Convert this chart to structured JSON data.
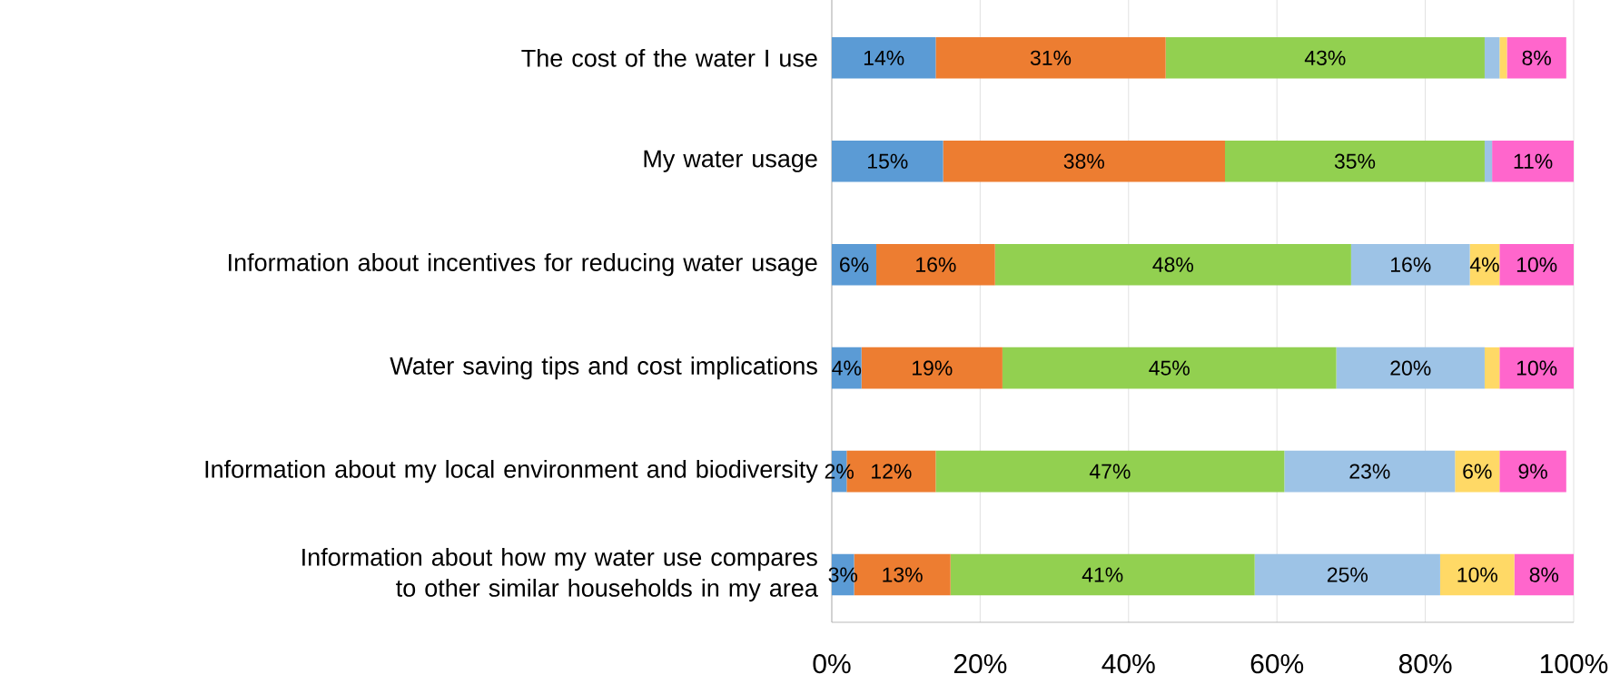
{
  "chart_data": {
    "type": "bar",
    "orientation": "horizontal",
    "stacked": true,
    "categories": [
      "The cost of the water I use",
      "My water usage",
      "Information about incentives for reducing water usage",
      "Water saving tips and cost implications",
      "Information about my local environment and biodiversity",
      "Information about how my water use compares to other similar households in my area"
    ],
    "series": [
      {
        "color": "#5b9bd5",
        "values": [
          14,
          15,
          6,
          4,
          2,
          3
        ],
        "value_labels": [
          "14%",
          "15%",
          "6%",
          "4%",
          "2%",
          "3%"
        ]
      },
      {
        "color": "#ed7d31",
        "values": [
          31,
          38,
          16,
          19,
          12,
          13
        ],
        "value_labels": [
          "31%",
          "38%",
          "16%",
          "19%",
          "12%",
          "13%"
        ]
      },
      {
        "color": "#92d050",
        "values": [
          43,
          35,
          48,
          45,
          47,
          41
        ],
        "value_labels": [
          "43%",
          "35%",
          "48%",
          "45%",
          "47%",
          "41%"
        ]
      },
      {
        "color": "#9dc3e6",
        "values": [
          2,
          1,
          16,
          20,
          23,
          25
        ],
        "value_labels": [
          null,
          null,
          "16%",
          "20%",
          "23%",
          "25%"
        ]
      },
      {
        "color": "#ffd966",
        "values": [
          1,
          null,
          4,
          2,
          6,
          10
        ],
        "value_labels": [
          null,
          null,
          "4%",
          null,
          "6%",
          "10%"
        ]
      },
      {
        "color": "#ff66cc",
        "values": [
          8,
          11,
          10,
          10,
          9,
          8
        ],
        "value_labels": [
          "8%",
          "11%",
          "10%",
          "10%",
          "9%",
          "8%"
        ]
      }
    ],
    "xlim": [
      0,
      100
    ],
    "xticks": [
      {
        "value": 0,
        "label": "0%"
      },
      {
        "value": 20,
        "label": "20%"
      },
      {
        "value": 40,
        "label": "40%"
      },
      {
        "value": 60,
        "label": "60%"
      },
      {
        "value": 80,
        "label": "80%"
      },
      {
        "value": 100,
        "label": "100%"
      }
    ],
    "grid": "x"
  }
}
